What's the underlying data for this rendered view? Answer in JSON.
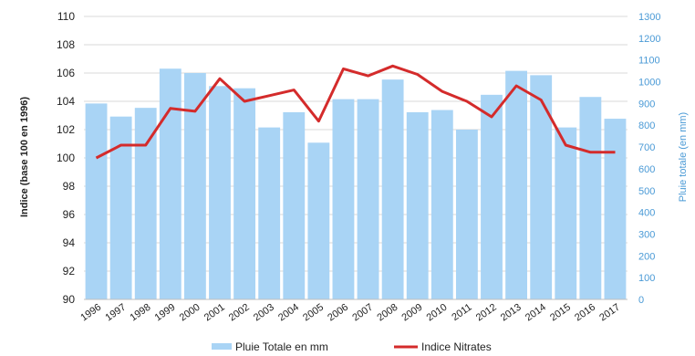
{
  "chart_data": {
    "type": "bar+line",
    "title": "",
    "categories": [
      "1996",
      "1997",
      "1998",
      "1999",
      "2000",
      "2001",
      "2002",
      "2003",
      "2004",
      "2005",
      "2006",
      "2007",
      "2008",
      "2009",
      "2010",
      "2011",
      "2012",
      "2013",
      "2014",
      "2015",
      "2016",
      "2017"
    ],
    "series": [
      {
        "name": "Pluie Totale en mm",
        "type": "bar",
        "axis": "right",
        "color": "#a9d4f5",
        "values": [
          900,
          840,
          880,
          1060,
          1040,
          980,
          970,
          790,
          860,
          720,
          920,
          920,
          1010,
          860,
          870,
          780,
          940,
          1050,
          1030,
          790,
          930,
          830
        ]
      },
      {
        "name": "Indice Nitrates",
        "type": "line",
        "axis": "left",
        "color": "#d42b2b",
        "values": [
          100.0,
          100.9,
          100.9,
          103.5,
          103.3,
          105.6,
          104.0,
          104.4,
          104.8,
          102.6,
          106.3,
          105.8,
          106.5,
          105.9,
          104.7,
          104.0,
          102.9,
          105.1,
          104.1,
          100.9,
          100.4,
          100.4
        ]
      }
    ],
    "ylabel": "Indice (base 100 en 1996)",
    "ylim": [
      90,
      110
    ],
    "yticks": [
      "90",
      "92",
      "94",
      "96",
      "98",
      "100",
      "102",
      "104",
      "106",
      "108",
      "110"
    ],
    "y2label": "Pluie totale (en mm)",
    "y2lim": [
      0,
      1300
    ],
    "y2ticks": [
      "0",
      "100",
      "200",
      "300",
      "400",
      "500",
      "600",
      "700",
      "800",
      "900",
      "1000",
      "1100",
      "1200",
      "1300"
    ],
    "grid": true,
    "legend_position": "bottom"
  }
}
